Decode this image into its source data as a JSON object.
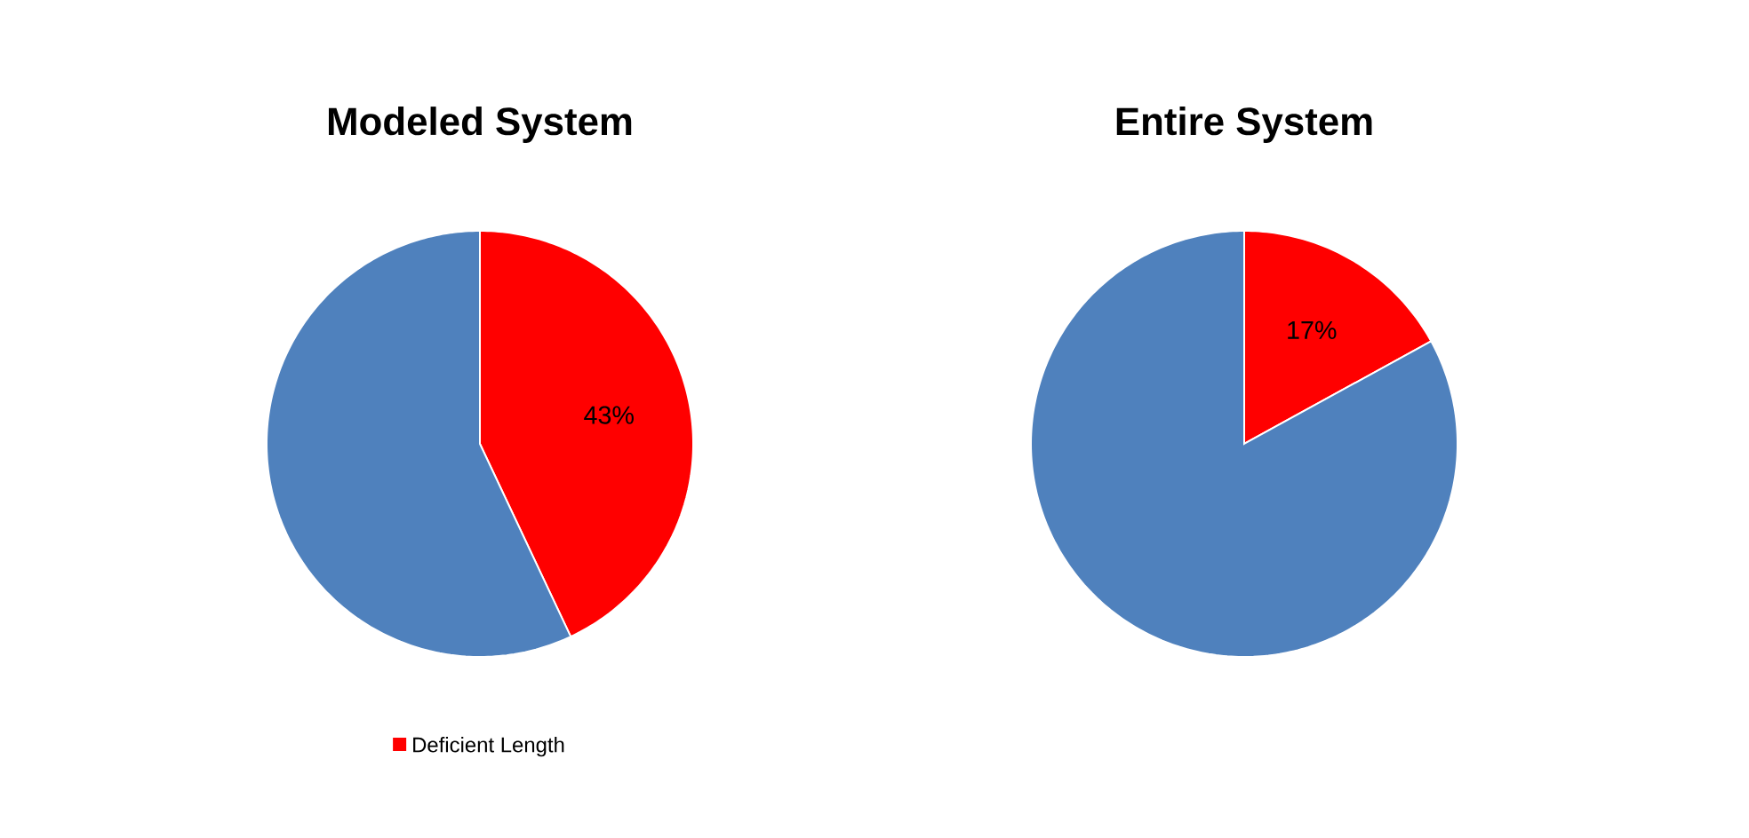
{
  "chart_data": [
    {
      "type": "pie",
      "title": "Modeled System",
      "categories": [
        "Deficient Length",
        null
      ],
      "values": [
        43,
        57
      ],
      "colors": [
        "#ff0000",
        "#4f81bd"
      ],
      "value_labels": [
        "43%",
        null
      ],
      "legend": "bottom"
    },
    {
      "type": "pie",
      "title": "Entire System",
      "categories": [
        null,
        null
      ],
      "values": [
        17,
        83
      ],
      "colors": [
        "#ff0000",
        "#4f81bd"
      ],
      "value_labels": [
        "17%",
        null
      ]
    }
  ]
}
